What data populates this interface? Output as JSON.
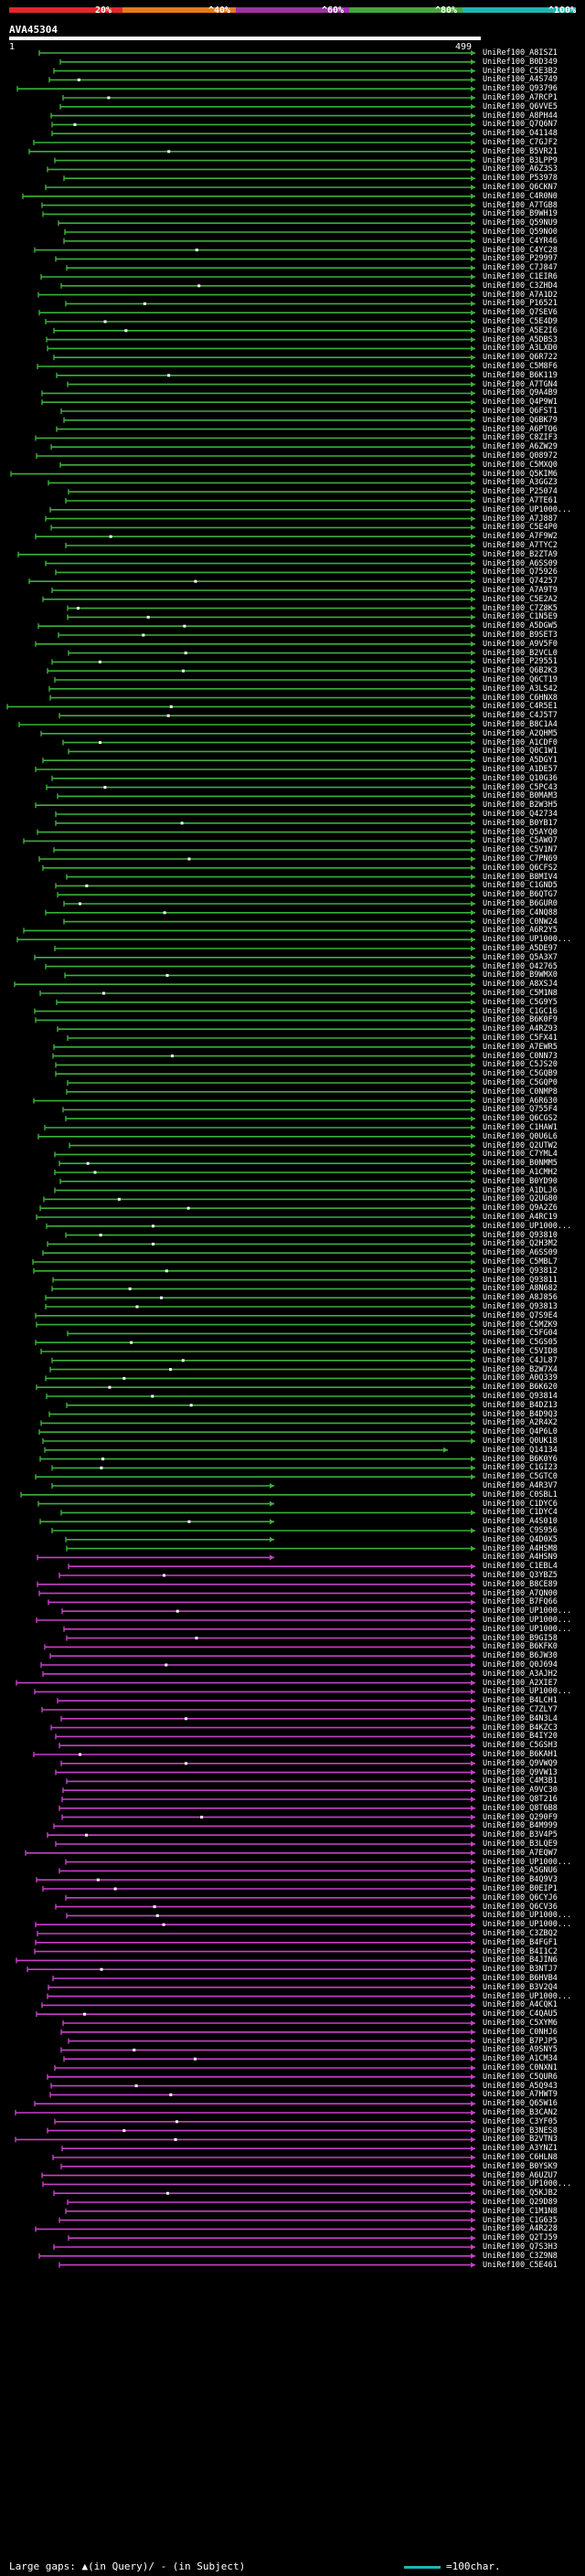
{
  "scale": {
    "colors": [
      "#e3262a",
      "#e57a1d",
      "#9c33a6",
      "#47a63a",
      "#22b3b3"
    ],
    "labels": [
      "20%",
      "^40%",
      "^60%",
      "^80%",
      "^100%"
    ]
  },
  "query": {
    "id": "AVA45304",
    "start": "1",
    "end": "499"
  },
  "legend": {
    "text": "Large gaps: ▲(in Query)/ - (in Subject)",
    "scale_label": "=100char."
  },
  "hit_colors": {
    "green": "#3ab03a",
    "magenta": "#c83fc8"
  },
  "hits": [
    "UniRef100_A8ISZ1",
    "UniRef100_B0D349",
    "UniRef100_C5E3B2",
    "UniRef100_A4S749",
    "UniRef100_Q93796",
    "UniRef100_A7RCP1",
    "UniRef100_Q6VVE5",
    "UniRef100_A8PH44",
    "UniRef100_Q7Q6N7",
    "UniRef100_O41148",
    "UniRef100_C7GJF2",
    "UniRef100_B5VR21",
    "UniRef100_B3LPP9",
    "UniRef100_A6Z3S3",
    "UniRef100_P53978",
    "UniRef100_Q6CKN7",
    "UniRef100_C4R0N0",
    "UniRef100_A7TGB8",
    "UniRef100_B9WH19",
    "UniRef100_Q59NU9",
    "UniRef100_Q59NO0",
    "UniRef100_C4YR46",
    "UniRef100_C4YC28",
    "UniRef100_P29997",
    "UniRef100_C7J847",
    "UniRef100_C1EIR6",
    "UniRef100_C3ZHD4",
    "UniRef100_A7A1D2",
    "UniRef100_P16521",
    "UniRef100_Q7SEV6",
    "UniRef100_C5E4D9",
    "UniRef100_A5E2I6",
    "UniRef100_A5DBS3",
    "UniRef100_A3LXD0",
    "UniRef100_Q6R722",
    "UniRef100_C5M8F6",
    "UniRef100_B6K119",
    "UniRef100_A7TGN4",
    "UniRef100_Q9A4B9",
    "UniRef100_Q4P9W1",
    "UniRef100_Q6FST1",
    "UniRef100_Q6BK79",
    "UniRef100_A6PTO6",
    "UniRef100_C8ZIF3",
    "UniRef100_A6ZW29",
    "UniRef100_Q08972",
    "UniRef100_C5MXQ0",
    "UniRef100_Q5KIM6",
    "UniRef100_A3GGZ3",
    "UniRef100_P25074",
    "UniRef100_A7TE61",
    "UniRef100_UP1000...",
    "UniRef100_A7J887",
    "UniRef100_C5E4P0",
    "UniRef100_A7F9W2",
    "UniRef100_A7TYC2",
    "UniRef100_B2ZTA9",
    "UniRef100_A6SS09",
    "UniRef100_Q75926",
    "UniRef100_Q74257",
    "UniRef100_A7A9T9",
    "UniRef100_C5E2A2",
    "UniRef100_C7Z8K5",
    "UniRef100_C1N5E9",
    "UniRef100_A5DGW5",
    "UniRef100_B9SET3",
    "UniRef100_A9V5F0",
    "UniRef100_B2VCL0",
    "UniRef100_P29551",
    "UniRef100_Q6B2K3",
    "UniRef100_Q6CT19",
    "UniRef100_A3LS42",
    "UniRef100_C6HNX8",
    "UniRef100_C4R5E1",
    "UniRef100_C4J5T7",
    "UniRef100_B8C1A4",
    "UniRef100_A2QHM5",
    "UniRef100_A1CDF0",
    "UniRef100_Q0C1W1",
    "UniRef100_A5DGY1",
    "UniRef100_A1DE57",
    "UniRef100_Q10G36",
    "UniRef100_C5PC43",
    "UniRef100_B0MAM3",
    "UniRef100_B2W3H5",
    "UniRef100_Q42734",
    "UniRef100_B0YB17",
    "UniRef100_Q5AYQ0",
    "UniRef100_C5AWO7",
    "UniRef100_C5V1N7",
    "UniRef100_C7PN69",
    "UniRef100_Q6CFS2",
    "UniRef100_B8MIV4",
    "UniRef100_C1GND5",
    "UniRef100_B6QTG7",
    "UniRef100_B6GUR0",
    "UniRef100_C4NQ88",
    "UniRef100_C0NW24",
    "UniRef100_A6R2Y5",
    "UniRef100_UP1000...",
    "UniRef100_A5DE97",
    "UniRef100_Q5A3X7",
    "UniRef100_O42765",
    "UniRef100_B9WMX0",
    "UniRef100_A8XSJ4",
    "UniRef100_C5M1N8",
    "UniRef100_C5G9Y5",
    "UniRef100_C1GC16",
    "UniRef100_B6K0F9",
    "UniRef100_A4RZ93",
    "UniRef100_C5FX41",
    "UniRef100_A7EWR5",
    "UniRef100_C0NN73",
    "UniRef100_C5JS20",
    "UniRef100_C5GQB9",
    "UniRef100_C5GQP0",
    "UniRef100_C0NMP8",
    "UniRef100_A6R630",
    "UniRef100_Q755F4",
    "UniRef100_Q6CGS2",
    "UniRef100_C1HAW1",
    "UniRef100_Q0U6L6",
    "UniRef100_Q2UTW2",
    "UniRef100_C7YML4",
    "UniRef100_B0NMM5",
    "UniRef100_A1CMH2",
    "UniRef100_B0YD90",
    "UniRef100_A1DLJ6",
    "UniRef100_Q2UG80",
    "UniRef100_Q9A2Z6",
    "UniRef100_A4RC19",
    "UniRef100_UP1000...",
    "UniRef100_Q93810",
    "UniRef100_Q2H3M2",
    "UniRef100_A6SS09",
    "UniRef100_C5MBL7",
    "UniRef100_Q93812",
    "UniRef100_Q93811",
    "UniRef100_A8N682",
    "UniRef100_A8J856",
    "UniRef100_Q93813",
    "UniRef100_Q7S9E4",
    "UniRef100_C5MZK9",
    "UniRef100_C5FG04",
    "UniRef100_C5GS05",
    "UniRef100_C5VID8",
    "UniRef100_C4JL87",
    "UniRef100_B2W7X4",
    "UniRef100_A0Q339",
    "UniRef100_B6K620",
    "UniRef100_Q93814",
    "UniRef100_B4DZ13",
    "UniRef100_B4D9Q3",
    "UniRef100_A2R4X2",
    "UniRef100_Q4P6L0",
    "UniRef100_Q0UK18",
    "UniRef100_Q14134",
    "UniRef100_B6K0Y6",
    "UniRef100_C1GI23",
    "UniRef100_C5GTC0",
    "UniRef100_A4R3V7",
    "UniRef100_C0SBL1",
    "UniRef100_C1DYC6",
    "UniRef100_C1DYC4",
    "UniRef100_A4S010",
    "UniRef100_C9S956",
    "UniRef100_Q4D0X5",
    "UniRef100_A4HSM8",
    "UniRef100_A4HSN9",
    "UniRef100_C1EBL4",
    "UniRef100_Q3YBZ5",
    "UniRef100_B8CE89",
    "UniRef100_A7QN00",
    "UniRef100_B7FQ66",
    "UniRef100_UP1000...",
    "UniRef100_UP1000...",
    "UniRef100_UP1000...",
    "UniRef100_B9GI58",
    "UniRef100_B6KFK0",
    "UniRef100_B6JW30",
    "UniRef100_Q0J694",
    "UniRef100_A3AJH2",
    "UniRef100_A2XIE7",
    "UniRef100_UP1000...",
    "UniRef100_B4LCH1",
    "UniRef100_C7ZLY7",
    "UniRef100_B4N3L4",
    "UniRef100_B4KZC3",
    "UniRef100_B4IY20",
    "UniRef100_C5GSH3",
    "UniRef100_B6KAH1",
    "UniRef100_Q9VWQ9",
    "UniRef100_Q9VW13",
    "UniRef100_C4M3B1",
    "UniRef100_A9VC30",
    "UniRef100_Q8T216",
    "UniRef100_Q8T6B8",
    "UniRef100_Q290F9",
    "UniRef100_B4M999",
    "UniRef100_B3V4P5",
    "UniRef100_B3LQE9",
    "UniRef100_A7EQW7",
    "UniRef100_UP1000...",
    "UniRef100_A5GNU6",
    "UniRef100_B4Q9V3",
    "UniRef100_B0EIP1",
    "UniRef100_Q6CYJ6",
    "UniRef100_Q6CV36",
    "UniRef100_UP1000...",
    "UniRef100_UP1000...",
    "UniRef100_C3ZBQ2",
    "UniRef100_B4FGF1",
    "UniRef100_B4I1C2",
    "UniRef100_B4JIN6",
    "UniRef100_B3NTJ7",
    "UniRef100_B6HVB4",
    "UniRef100_B3V2Q4",
    "UniRef100_UP1000...",
    "UniRef100_A4CQK1",
    "UniRef100_C4QAU5",
    "UniRef100_C5XYM6",
    "UniRef100_C0NHJ6",
    "UniRef100_B7PJP5",
    "UniRef100_A9SNY5",
    "UniRef100_A1CM34",
    "UniRef100_C0NXN1",
    "UniRef100_C5QUR6",
    "UniRef100_A5Q943",
    "UniRef100_A7HWT9",
    "UniRef100_Q65W16",
    "UniRef100_B3CAN2",
    "UniRef100_C3YF05",
    "UniRef100_B3NES8",
    "UniRef100_B2VTN3",
    "UniRef100_A3YNZ1",
    "UniRef100_C6HLN8",
    "UniRef100_B0YSK9",
    "UniRef100_A6UZU7",
    "UniRef100_UP1000...",
    "UniRef100_Q5KJB2",
    "UniRef100_Q29D89",
    "UniRef100_C1M1N8",
    "UniRef100_C1G635",
    "UniRef100_A4R228",
    "UniRef100_Q2TJ59",
    "UniRef100_Q7S3H3",
    "UniRef100_C3Z9N8",
    "UniRef100_C5E461"
  ]
}
